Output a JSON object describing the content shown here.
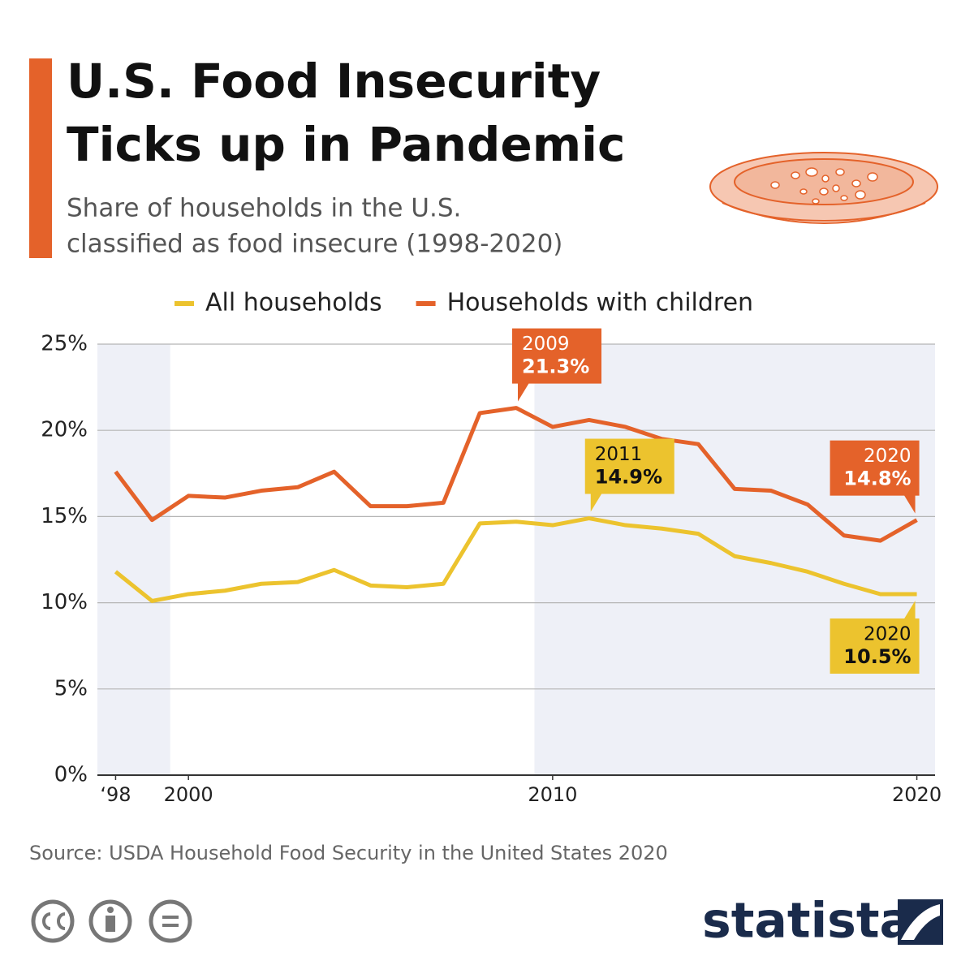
{
  "chart_data": {
    "type": "line",
    "title": [
      "U.S. Food Insecurity",
      "Ticks up in Pandemic"
    ],
    "subtitle": [
      "Share of households in the U.S.",
      "classified as food insecure (1998-2020)"
    ],
    "source": "Source: USDA Household Food Security in the United States 2020",
    "brand": "statista",
    "x": [
      1998,
      1999,
      2000,
      2001,
      2002,
      2003,
      2004,
      2005,
      2006,
      2007,
      2008,
      2009,
      2010,
      2011,
      2012,
      2013,
      2014,
      2015,
      2016,
      2017,
      2018,
      2019,
      2020
    ],
    "series": [
      {
        "name": "All households",
        "color": "#ecc32e",
        "values": [
          11.8,
          10.1,
          10.5,
          10.7,
          11.1,
          11.2,
          11.9,
          11.0,
          10.9,
          11.1,
          14.6,
          14.7,
          14.5,
          14.9,
          14.5,
          14.3,
          14.0,
          12.7,
          12.3,
          11.8,
          11.1,
          10.5,
          10.5
        ]
      },
      {
        "name": "Households with children",
        "color": "#e4622a",
        "values": [
          17.6,
          14.8,
          16.2,
          16.1,
          16.5,
          16.7,
          17.6,
          15.6,
          15.6,
          15.8,
          21.0,
          21.3,
          20.2,
          20.6,
          20.2,
          19.5,
          19.2,
          16.6,
          16.5,
          15.7,
          13.9,
          13.6,
          14.8
        ]
      }
    ],
    "annotations": [
      {
        "x": 2009,
        "y": 21.3,
        "label": "2009",
        "value_label": "21.3%",
        "color": "#e4622a",
        "text_color": "#ffffff"
      },
      {
        "x": 2011,
        "y": 14.9,
        "label": "2011",
        "value_label": "14.9%",
        "color": "#ecc32e",
        "text_color": "#111111"
      },
      {
        "x": 2020,
        "y": 14.8,
        "label": "2020",
        "value_label": "14.8%",
        "color": "#e4622a",
        "text_color": "#ffffff"
      },
      {
        "x": 2020,
        "y": 10.5,
        "label": "2020",
        "value_label": "10.5%",
        "color": "#ecc32e",
        "text_color": "#111111"
      }
    ],
    "bands": [
      [
        1997.5,
        1999.5
      ],
      [
        2009.5,
        2020.5
      ]
    ],
    "xlim": [
      1997.5,
      2020.5
    ],
    "xticks": [
      {
        "value": 1998,
        "label": "‘98"
      },
      2000,
      2010,
      2020
    ],
    "ylim": [
      0,
      25
    ],
    "yticks": [
      {
        "value": 0,
        "label": "0%"
      },
      {
        "value": 5,
        "label": "5%"
      },
      {
        "value": 10,
        "label": "10%"
      },
      {
        "value": 15,
        "label": "15%"
      },
      {
        "value": 20,
        "label": "20%"
      },
      {
        "value": 25,
        "label": "25%"
      }
    ],
    "grid": true
  }
}
